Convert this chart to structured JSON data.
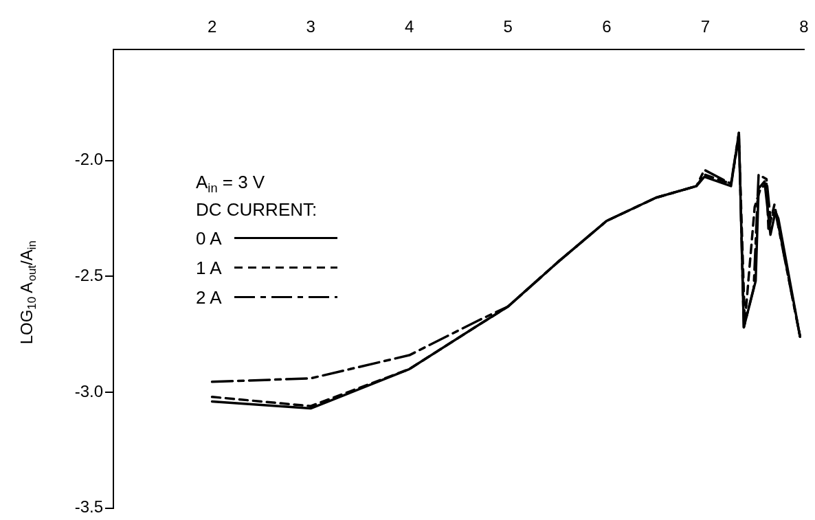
{
  "chart_data": {
    "type": "line",
    "ylabel": "LOG$_{10}$ A$_{out}$/A$_{in}$",
    "legend_title": "DC CURRENT:",
    "annotations": [
      "A$_{in}$ = 3 V"
    ],
    "xlim": [
      1,
      8
    ],
    "xticks": [
      2,
      3,
      4,
      5,
      6,
      7,
      8
    ],
    "ylim": [
      -3.5,
      -1.52
    ],
    "yticks": [
      {
        "value": -2.0,
        "label": "-2.0"
      },
      {
        "value": -2.5,
        "label": "-2.5"
      },
      {
        "value": -3.0,
        "label": "-3.0"
      },
      {
        "value": -3.5,
        "label": "-3.5"
      }
    ],
    "grid": false,
    "legend": "left",
    "marker": "none",
    "series": [
      {
        "name": "0 A",
        "color": "#000000",
        "line_style": "solid",
        "x": [
          2,
          3,
          4,
          4.7,
          5,
          5.5,
          6,
          6.5,
          6.91,
          6.99,
          7.26,
          7.34,
          7.39,
          7.51,
          7.54,
          7.6,
          7.66,
          7.71,
          7.74,
          7.96
        ],
        "values": [
          -3.04,
          -3.07,
          -2.9,
          -2.71,
          -2.63,
          -2.44,
          -2.26,
          -2.16,
          -2.11,
          -2.07,
          -2.11,
          -1.88,
          -2.72,
          -2.52,
          -2.12,
          -2.09,
          -2.32,
          -2.22,
          -2.25,
          -2.76
        ]
      },
      {
        "name": "1 A",
        "color": "#000000",
        "line_style": "dashed",
        "x": [
          2,
          3,
          4,
          4.7,
          5,
          5.5,
          6,
          6.5,
          6.91,
          6.99,
          7.26,
          7.34,
          7.4,
          7.5,
          7.56,
          7.62,
          7.64,
          7.7,
          7.96
        ],
        "values": [
          -3.02,
          -3.06,
          -2.9,
          -2.71,
          -2.63,
          -2.44,
          -2.26,
          -2.16,
          -2.11,
          -2.06,
          -2.1,
          -1.9,
          -2.7,
          -2.2,
          -2.12,
          -2.1,
          -2.3,
          -2.19,
          -2.76
        ]
      },
      {
        "name": "2 A",
        "color": "#000000",
        "line_style": "dashdot",
        "x": [
          2,
          3,
          4,
          4.7,
          5,
          5.5,
          6,
          6.5,
          6.91,
          6.99,
          7.26,
          7.34,
          7.39,
          7.49,
          7.54,
          7.62,
          7.66,
          7.71,
          7.96
        ],
        "values": [
          -2.955,
          -2.94,
          -2.84,
          -2.69,
          -2.63,
          -2.44,
          -2.26,
          -2.16,
          -2.11,
          -2.04,
          -2.1,
          -1.88,
          -2.72,
          -2.55,
          -2.06,
          -2.08,
          -2.25,
          -2.22,
          -2.76
        ]
      }
    ]
  }
}
